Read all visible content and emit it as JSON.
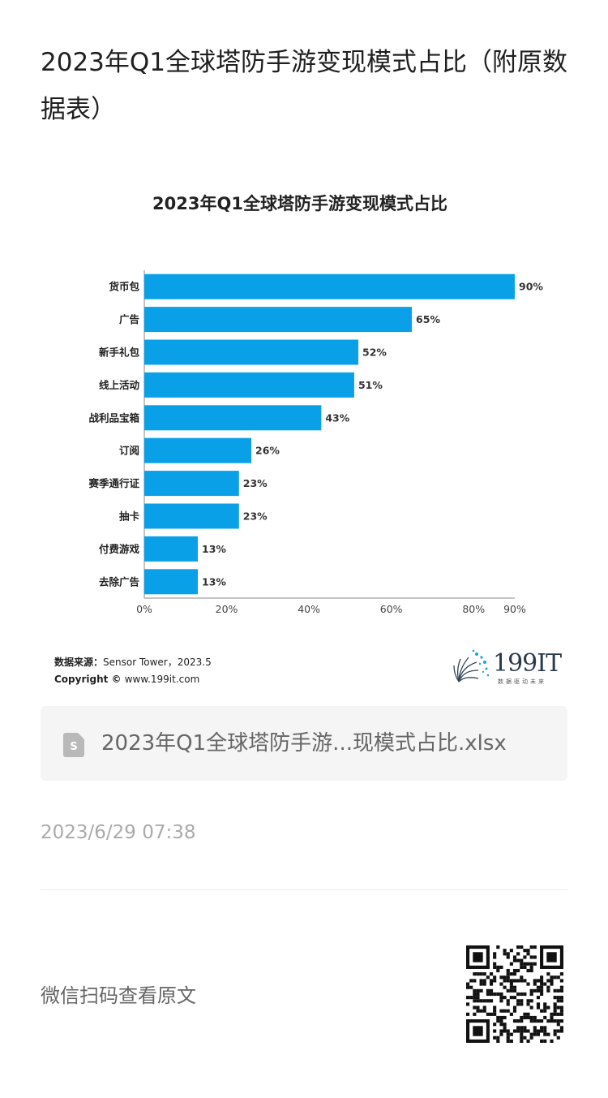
{
  "article": {
    "title": "2023年Q1全球塔防手游变现模式占比（附原数据表）"
  },
  "chart_data": {
    "type": "bar",
    "orientation": "horizontal",
    "title": "2023年Q1全球塔防手游变现模式占比",
    "categories": [
      "货币包",
      "广告",
      "新手礼包",
      "线上活动",
      "战利品宝箱",
      "订阅",
      "赛季通行证",
      "抽卡",
      "付费游戏",
      "去除广告"
    ],
    "values": [
      90,
      65,
      52,
      51,
      43,
      26,
      23,
      23,
      13,
      13
    ],
    "value_labels": [
      "90%",
      "65%",
      "52%",
      "51%",
      "43%",
      "26%",
      "23%",
      "23%",
      "13%",
      "13%"
    ],
    "xlim": [
      0,
      90
    ],
    "xticks": [
      "0%",
      "20%",
      "40%",
      "60%",
      "80%",
      "90%"
    ],
    "xtick_values": [
      0,
      20,
      40,
      60,
      80,
      90
    ],
    "bar_color": "#0aa0e8",
    "grid": false,
    "legend": "none"
  },
  "source": {
    "label": "数据来源：",
    "text": "Sensor Tower，2023.5",
    "copyright_label": "Copyright © ",
    "copyright_text": "www.199it.com"
  },
  "logo": {
    "name": "199IT",
    "tagline": "数据驱动未来",
    "icon": "dandelion-logo-icon"
  },
  "attachment": {
    "icon": "spreadsheet-file-icon",
    "file_name": "2023年Q1全球塔防手游...现模式占比.xlsx"
  },
  "meta": {
    "timestamp": "2023/6/29 07:38"
  },
  "footer": {
    "view_original": "微信扫码查看原文",
    "qr_icon": "qr-code-icon"
  },
  "colors": {
    "accent": "#0aa0e8",
    "text_muted": "#aaaaaa"
  }
}
